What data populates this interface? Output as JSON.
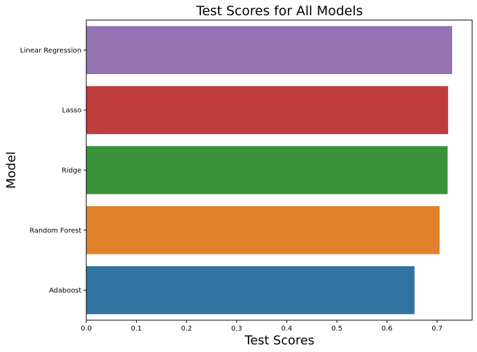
{
  "chart_data": {
    "type": "bar",
    "orientation": "horizontal",
    "title": "Test  Scores for All Models",
    "xlabel": "Test Scores",
    "ylabel": "Model",
    "categories": [
      "Linear Regression",
      "Lasso",
      "Ridge",
      "Random Forest",
      "Adaboost"
    ],
    "values": [
      0.73,
      0.722,
      0.721,
      0.705,
      0.655
    ],
    "colors": [
      "#9372b2",
      "#c03d3e",
      "#3a923a",
      "#e1812c",
      "#3274a1"
    ],
    "xlim": [
      0.0,
      0.77
    ],
    "xticks": [
      0.0,
      0.1,
      0.2,
      0.3,
      0.4,
      0.5,
      0.6,
      0.7
    ],
    "xtick_labels": [
      "0.0",
      "0.1",
      "0.2",
      "0.3",
      "0.4",
      "0.5",
      "0.6",
      "0.7"
    ],
    "grid": false,
    "legend": false
  }
}
